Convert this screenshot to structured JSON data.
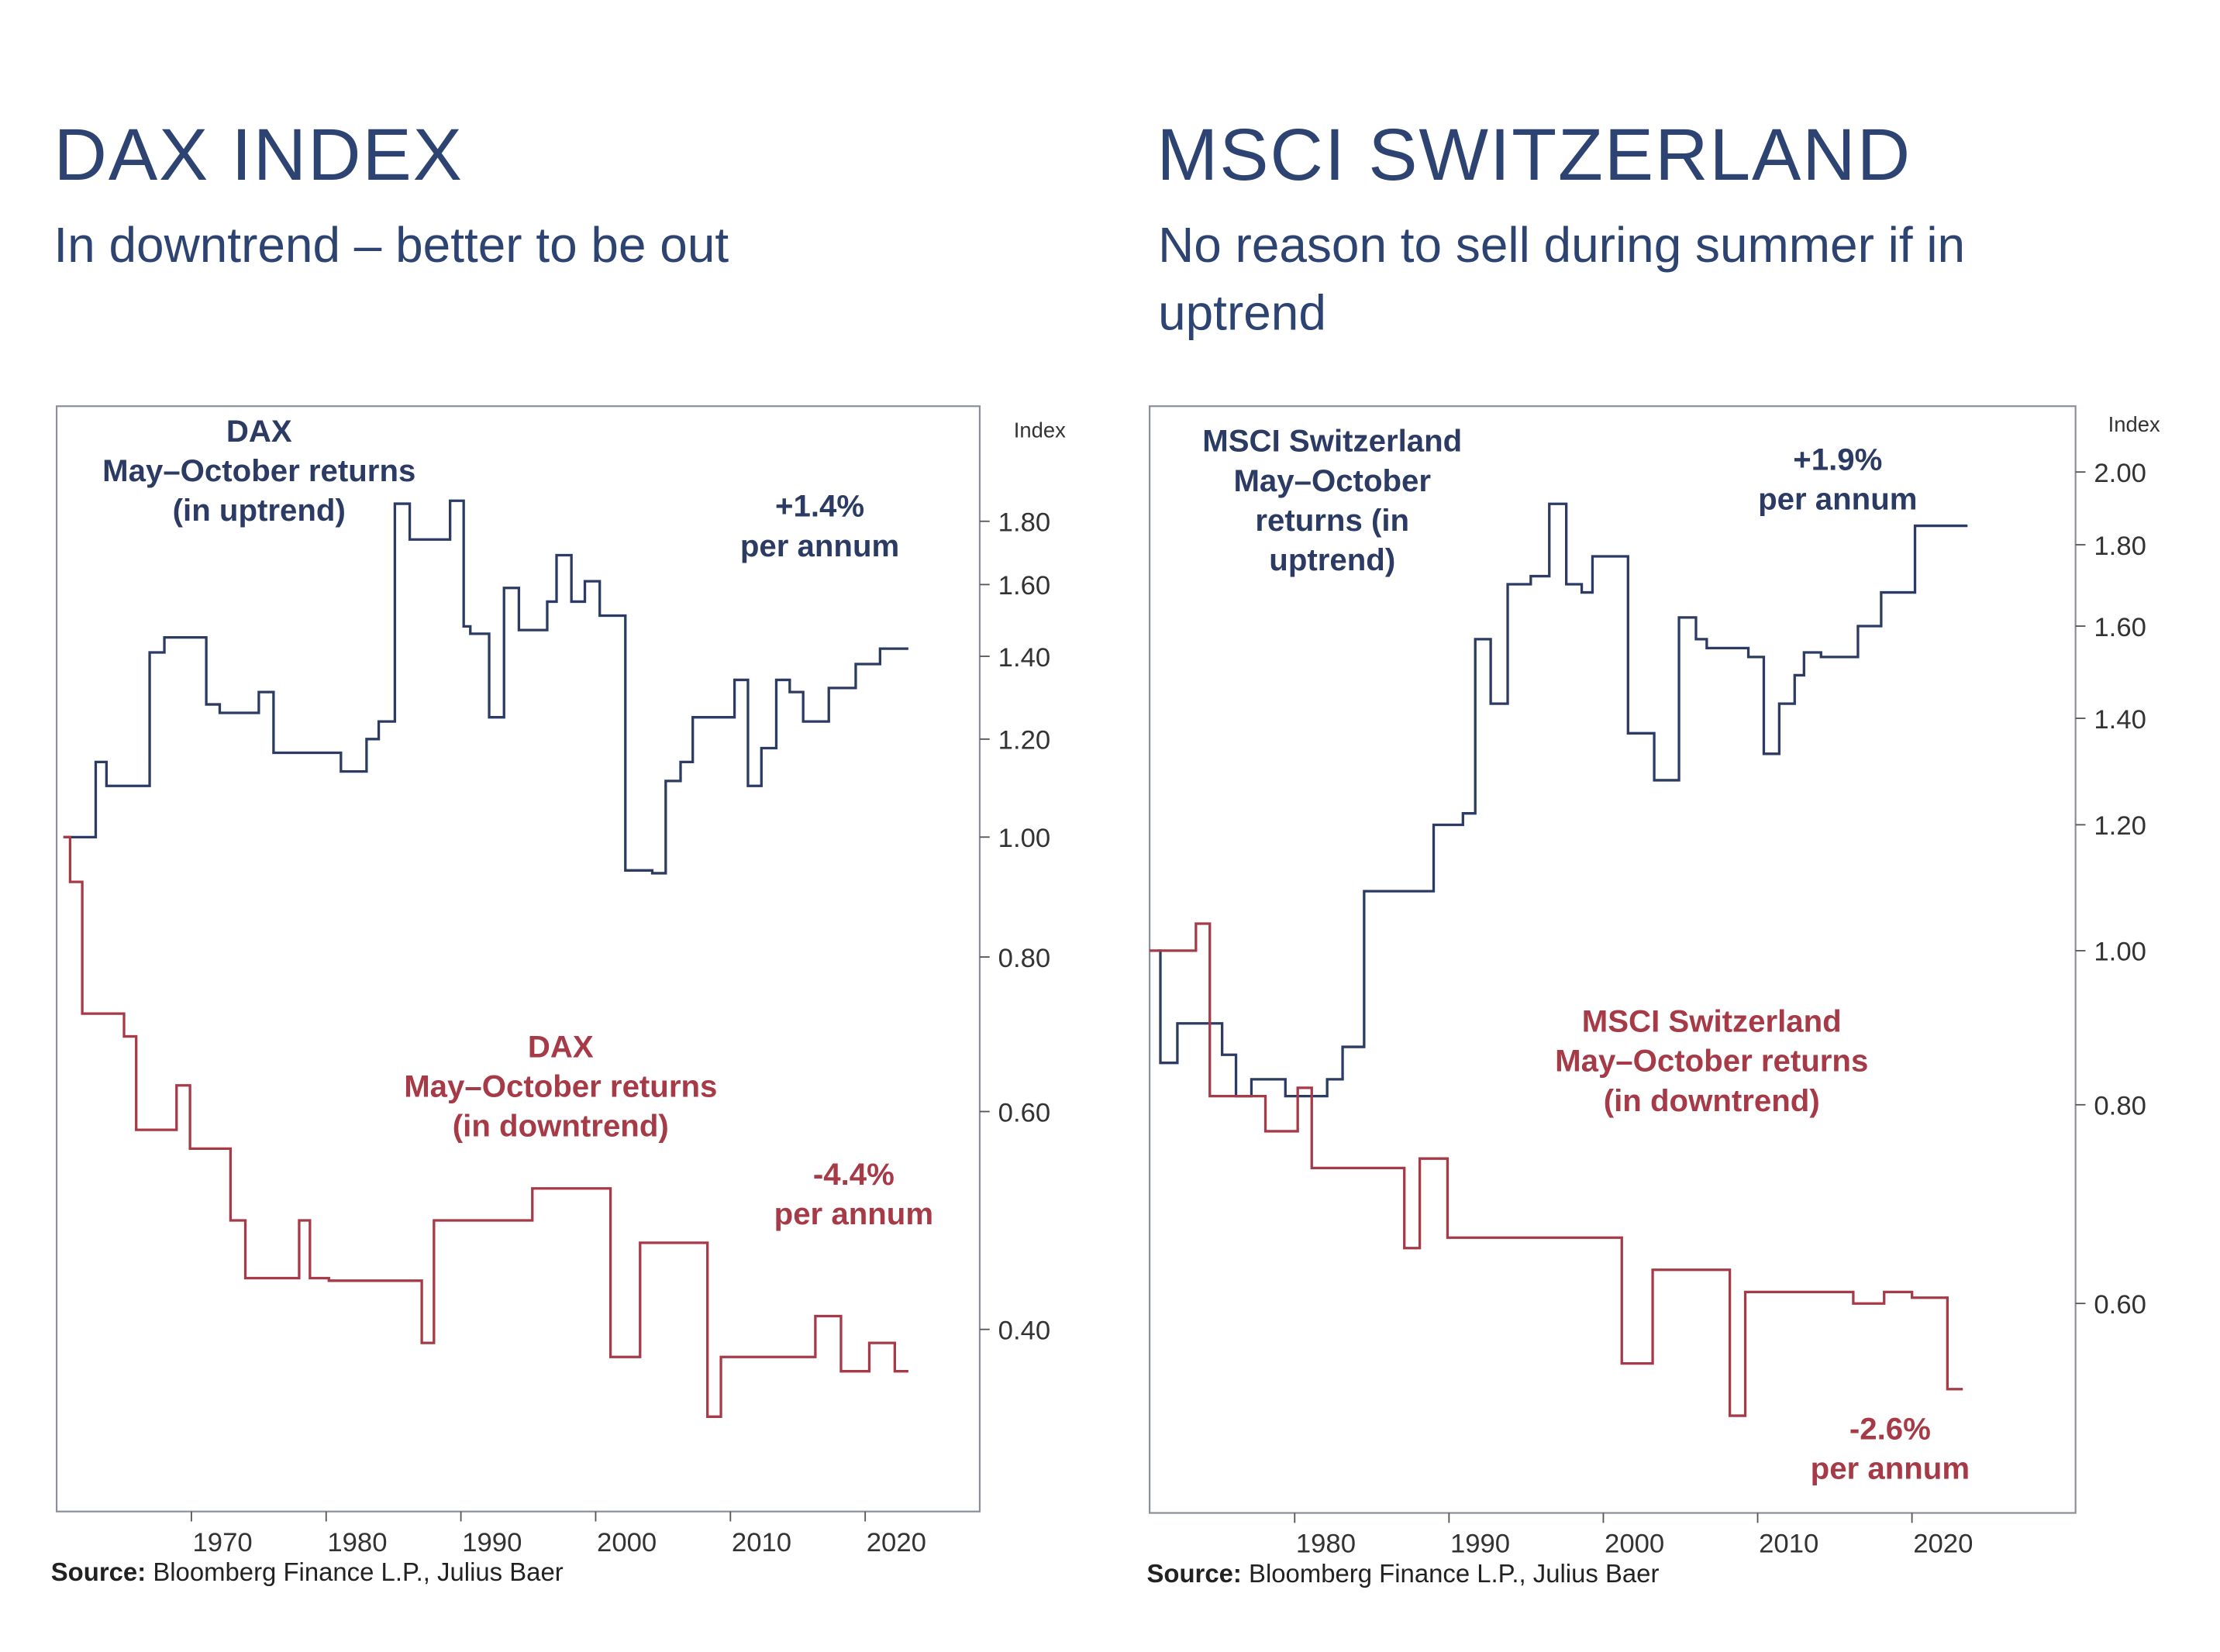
{
  "colors": {
    "navy": "#2b3b63",
    "red": "#a63a47",
    "title": "#2d4371"
  },
  "left": {
    "title": "DAX INDEX",
    "subtitle": "In downtrend – better to be out",
    "up_label": [
      "DAX",
      "May–October returns",
      "(in uptrend)"
    ],
    "up_return": [
      "+1.4%",
      "per annum"
    ],
    "down_label": [
      "DAX",
      "May–October returns",
      "(in downtrend)"
    ],
    "down_return": [
      "-4.4%",
      "per annum"
    ],
    "source_bold": "Source:",
    "source_text": " Bloomberg Finance L.P., Julius Baer"
  },
  "right": {
    "title": "MSCI SWITZERLAND",
    "subtitle": "No reason to sell during summer if in uptrend",
    "up_label": [
      "MSCI Switzerland",
      "May–October",
      "returns (in",
      "uptrend)"
    ],
    "up_return": [
      "+1.9%",
      "per annum"
    ],
    "down_label": [
      "MSCI Switzerland",
      "May–October returns",
      "(in downtrend)"
    ],
    "down_return": [
      "-2.6%",
      "per annum"
    ],
    "source_bold": "Source:",
    "source_text": " Bloomberg Finance L.P., Julius Baer"
  },
  "chart_data": [
    {
      "type": "line",
      "step": true,
      "ylabel": "Index",
      "yscale": "log",
      "ylim": [
        0.285,
        2.23
      ],
      "xlim": [
        1960,
        2028.5
      ],
      "yticks": [
        "1.80",
        "1.60",
        "1.40",
        "1.20",
        "1.00",
        "0.80",
        "0.60",
        "0.40"
      ],
      "xticks": [
        "1970",
        "1980",
        "1990",
        "2000",
        "2010",
        "2020"
      ],
      "grid": false,
      "series": [
        {
          "name": "DAX May–October returns (in uptrend)",
          "color": "#2b3b63",
          "x_end": 2023.2,
          "points": [
            [
              1960.5,
              1.0
            ],
            [
              1962.9,
              1.15
            ],
            [
              1963.7,
              1.1
            ],
            [
              1966.9,
              1.41
            ],
            [
              1968,
              1.45
            ],
            [
              1971.1,
              1.28
            ],
            [
              1972.1,
              1.26
            ],
            [
              1975,
              1.31
            ],
            [
              1976.1,
              1.17
            ],
            [
              1977.1,
              1.17
            ],
            [
              1981.1,
              1.13
            ],
            [
              1981.8,
              1.13
            ],
            [
              1983,
              1.2
            ],
            [
              1983.9,
              1.24
            ],
            [
              1985.1,
              1.86
            ],
            [
              1986.2,
              1.74
            ],
            [
              1989.2,
              1.87
            ],
            [
              1990.2,
              1.48
            ],
            [
              1990.7,
              1.46
            ],
            [
              1992.1,
              1.25
            ],
            [
              1993.2,
              1.59
            ],
            [
              1994.3,
              1.47
            ],
            [
              1996.4,
              1.55
            ],
            [
              1997.1,
              1.69
            ],
            [
              1998.2,
              1.55
            ],
            [
              1999.2,
              1.61
            ],
            [
              2000.3,
              1.51
            ],
            [
              2002.2,
              0.94
            ],
            [
              2004.2,
              0.935
            ],
            [
              2005.2,
              1.11
            ],
            [
              2006.3,
              1.15
            ],
            [
              2007.2,
              1.25
            ],
            [
              2010.3,
              1.34
            ],
            [
              2011.3,
              1.1
            ],
            [
              2012.3,
              1.18
            ],
            [
              2013.4,
              1.34
            ],
            [
              2014.4,
              1.31
            ],
            [
              2015.4,
              1.24
            ],
            [
              2017.3,
              1.32
            ],
            [
              2019.3,
              1.38
            ],
            [
              2021.1,
              1.42
            ]
          ]
        },
        {
          "name": "DAX May–October returns (in downtrend)",
          "color": "#a63a47",
          "x_end": 2023.2,
          "points": [
            [
              1960.5,
              1.0
            ],
            [
              1961,
              0.92
            ],
            [
              1961.9,
              0.72
            ],
            [
              1965,
              0.69
            ],
            [
              1965.9,
              0.58
            ],
            [
              1968.9,
              0.63
            ],
            [
              1969.9,
              0.56
            ],
            [
              1972.9,
              0.49
            ],
            [
              1974,
              0.44
            ],
            [
              1978,
              0.49
            ],
            [
              1978.8,
              0.44
            ],
            [
              1980.2,
              0.438
            ],
            [
              1987.1,
              0.39
            ],
            [
              1988,
              0.49
            ],
            [
              1995.3,
              0.52
            ],
            [
              2001.1,
              0.38
            ],
            [
              2003.3,
              0.47
            ],
            [
              2008.3,
              0.34
            ],
            [
              2009.3,
              0.38
            ],
            [
              2016.3,
              0.41
            ],
            [
              2018.2,
              0.37
            ],
            [
              2020.3,
              0.39
            ],
            [
              2022.2,
              0.37
            ]
          ]
        }
      ]
    },
    {
      "type": "line",
      "step": true,
      "ylabel": "Index",
      "yscale": "log",
      "ylim": [
        0.443,
        2.2
      ],
      "xlim": [
        1970.6,
        2030.6
      ],
      "yticks": [
        "2.00",
        "1.80",
        "1.60",
        "1.40",
        "1.20",
        "1.00",
        "0.80",
        "0.60"
      ],
      "xticks": [
        "1980",
        "1990",
        "2000",
        "2010",
        "2020"
      ],
      "grid": false,
      "series": [
        {
          "name": "MSCI Switzerland May–October returns (in uptrend)",
          "color": "#2b3b63",
          "x_end": 2023.6,
          "points": [
            [
              1971.1,
              1.0
            ],
            [
              1971.3,
              0.85
            ],
            [
              1972.4,
              0.9
            ],
            [
              1975.3,
              0.86
            ],
            [
              1976.2,
              0.81
            ],
            [
              1977.2,
              0.83
            ],
            [
              1979.4,
              0.81
            ],
            [
              1982.1,
              0.83
            ],
            [
              1983.1,
              0.87
            ],
            [
              1984.5,
              1.09
            ],
            [
              1989.0,
              1.2
            ],
            [
              1990.9,
              1.22
            ],
            [
              1991.7,
              1.57
            ],
            [
              1992.7,
              1.43
            ],
            [
              1993.8,
              1.7
            ],
            [
              1995.3,
              1.72
            ],
            [
              1996.5,
              1.91
            ],
            [
              1997.6,
              1.7
            ],
            [
              1998.6,
              1.68
            ],
            [
              1999.3,
              1.77
            ],
            [
              2001.6,
              1.37
            ],
            [
              2003.3,
              1.28
            ],
            [
              2004.9,
              1.62
            ],
            [
              2006.0,
              1.57
            ],
            [
              2006.7,
              1.55
            ],
            [
              2009.4,
              1.53
            ],
            [
              2010.4,
              1.33
            ],
            [
              2011.4,
              1.43
            ],
            [
              2012.4,
              1.49
            ],
            [
              2013.0,
              1.54
            ],
            [
              2014.1,
              1.53
            ],
            [
              2016.5,
              1.6
            ],
            [
              2018.0,
              1.68
            ],
            [
              2020.2,
              1.85
            ]
          ]
        },
        {
          "name": "MSCI Switzerland May–October returns (in downtrend)",
          "color": "#a63a47",
          "x_end": 2023.3,
          "points": [
            [
              1970.6,
              1.0
            ],
            [
              1973.6,
              1.04
            ],
            [
              1974.5,
              0.81
            ],
            [
              1978.1,
              0.77
            ],
            [
              1980.2,
              0.82
            ],
            [
              1981.1,
              0.73
            ],
            [
              1987.1,
              0.65
            ],
            [
              1988.1,
              0.74
            ],
            [
              1989.9,
              0.66
            ],
            [
              2001.2,
              0.55
            ],
            [
              2003.2,
              0.63
            ],
            [
              2008.2,
              0.51
            ],
            [
              2009.2,
              0.61
            ],
            [
              2016.2,
              0.6
            ],
            [
              2018.2,
              0.61
            ],
            [
              2020.0,
              0.605
            ],
            [
              2022.3,
              0.53
            ]
          ]
        }
      ]
    }
  ]
}
